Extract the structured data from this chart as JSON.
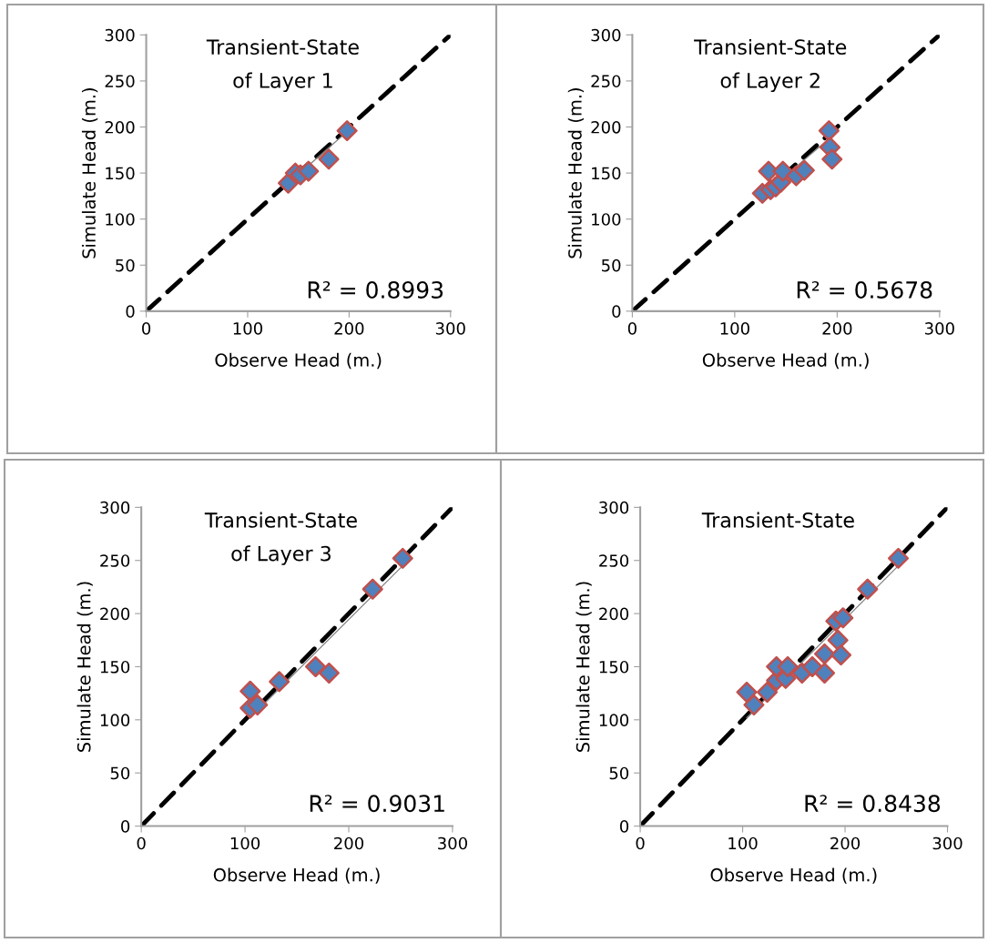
{
  "chart_data": [
    {
      "type": "scatter",
      "title": "Transient-State\nof Layer 1",
      "xlabel": "Observe Head (m.)",
      "ylabel": "Simulate Head (m.)",
      "xlim": [
        0,
        300
      ],
      "ylim": [
        0,
        300
      ],
      "xticks": [
        0,
        100,
        200,
        300
      ],
      "yticks": [
        0,
        50,
        100,
        150,
        200,
        250,
        300
      ],
      "grid": false,
      "legend": false,
      "marker": "diamond",
      "annotations": [
        "R² = 0.8993"
      ],
      "series": [
        {
          "type": "line",
          "color": "#000000",
          "line_style": "dashed",
          "marker": "none",
          "x": [
            0,
            300
          ],
          "values": [
            0,
            300
          ]
        },
        {
          "type": "line",
          "color": "#808080",
          "line_style": "solid",
          "marker": "none",
          "x": [
            138,
            198
          ],
          "values": [
            137,
            195
          ]
        },
        {
          "color": "#4f81bd",
          "x": [
            140,
            147,
            152,
            160,
            180,
            198
          ],
          "values": [
            139,
            150,
            148,
            152,
            165,
            196
          ]
        }
      ]
    },
    {
      "type": "scatter",
      "title": "Transient-State\nof Layer 2",
      "xlabel": "Observe Head (m.)",
      "ylabel": "Simulate Head (m.)",
      "xlim": [
        0,
        300
      ],
      "ylim": [
        0,
        300
      ],
      "xticks": [
        0,
        100,
        200,
        300
      ],
      "yticks": [
        0,
        50,
        100,
        150,
        200,
        250,
        300
      ],
      "grid": false,
      "legend": false,
      "marker": "diamond",
      "annotations": [
        "R² = 0.5678"
      ],
      "series": [
        {
          "type": "line",
          "color": "#000000",
          "line_style": "dashed",
          "marker": "none",
          "x": [
            0,
            300
          ],
          "values": [
            0,
            300
          ]
        },
        {
          "type": "line",
          "color": "#808080",
          "line_style": "solid",
          "marker": "none",
          "x": [
            125,
            195
          ],
          "values": [
            124,
            190
          ]
        },
        {
          "color": "#4f81bd",
          "x": [
            127,
            133,
            135,
            140,
            145,
            147,
            160,
            168,
            192,
            193,
            195
          ],
          "values": [
            128,
            152,
            132,
            135,
            140,
            152,
            147,
            153,
            196,
            178,
            165
          ]
        }
      ]
    },
    {
      "type": "scatter",
      "title": "Transient-State\nof Layer 3",
      "xlabel": "Observe Head (m.)",
      "ylabel": "Simulate Head (m.)",
      "xlim": [
        0,
        300
      ],
      "ylim": [
        0,
        300
      ],
      "xticks": [
        0,
        100,
        200,
        300
      ],
      "yticks": [
        0,
        50,
        100,
        150,
        200,
        250,
        300
      ],
      "grid": false,
      "legend": false,
      "marker": "diamond",
      "annotations": [
        "R² = 0.9031"
      ],
      "series": [
        {
          "type": "line",
          "color": "#000000",
          "line_style": "dashed",
          "marker": "none",
          "x": [
            0,
            300
          ],
          "values": [
            0,
            300
          ]
        },
        {
          "type": "line",
          "color": "#808080",
          "line_style": "solid",
          "marker": "none",
          "x": [
            106,
            252
          ],
          "values": [
            103,
            245
          ]
        },
        {
          "color": "#4f81bd",
          "x": [
            105,
            105,
            112,
            133,
            168,
            181,
            223,
            252
          ],
          "values": [
            127,
            111,
            114,
            136,
            150,
            144,
            223,
            252
          ]
        }
      ]
    },
    {
      "type": "scatter",
      "title": "Transient-State",
      "xlabel": "Observe Head (m.)",
      "ylabel": "Simulate Head (m.)",
      "xlim": [
        0,
        300
      ],
      "ylim": [
        0,
        300
      ],
      "xticks": [
        0,
        100,
        200,
        300
      ],
      "yticks": [
        0,
        50,
        100,
        150,
        200,
        250,
        300
      ],
      "grid": false,
      "legend": false,
      "marker": "diamond",
      "annotations": [
        "R² = 0.8438"
      ],
      "series": [
        {
          "type": "line",
          "color": "#000000",
          "line_style": "dashed",
          "marker": "none",
          "x": [
            0,
            300
          ],
          "values": [
            0,
            300
          ]
        },
        {
          "type": "line",
          "color": "#808080",
          "line_style": "solid",
          "marker": "none",
          "x": [
            104,
            252
          ],
          "values": [
            102,
            245
          ]
        },
        {
          "color": "#4f81bd",
          "x": [
            104,
            111,
            124,
            133,
            133,
            142,
            144,
            158,
            168,
            180,
            180,
            191,
            193,
            196,
            198,
            222,
            252
          ],
          "values": [
            126,
            114,
            126,
            137,
            150,
            139,
            150,
            144,
            150,
            162,
            144,
            193,
            175,
            161,
            196,
            223,
            252
          ]
        }
      ]
    }
  ]
}
